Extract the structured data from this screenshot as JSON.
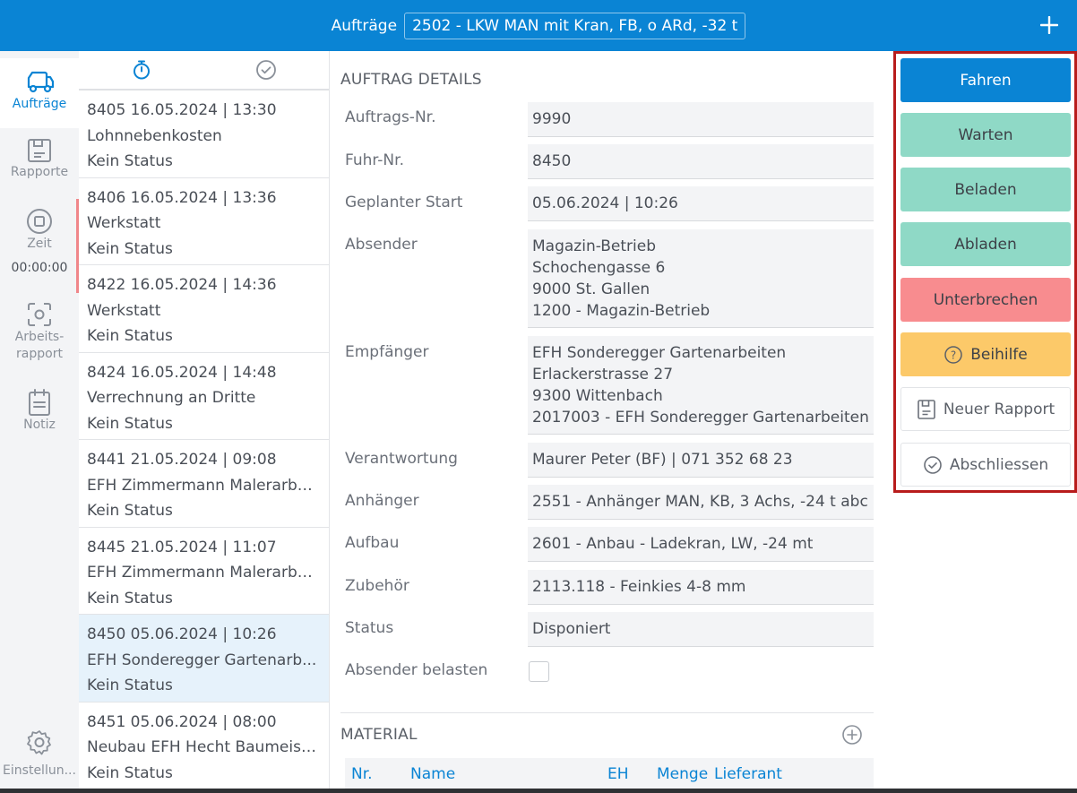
{
  "topbar": {
    "title": "Aufträge",
    "vehicle": "2502 - LKW MAN mit Kran, FB, o ARd, -32 t",
    "add_icon": "plus-icon"
  },
  "nav": {
    "items": [
      {
        "label": "Aufträge",
        "icon": "truck-icon",
        "active": true
      },
      {
        "label": "Rapporte",
        "icon": "save-icon"
      },
      {
        "label": "Zeit",
        "icon": "stop-icon",
        "time": "00:00:00"
      },
      {
        "label": "Arbeits-\nrapport",
        "label1": "Arbeits-",
        "label2": "rapport",
        "icon": "focus-icon"
      },
      {
        "label": "Notiz",
        "icon": "clipboard-icon"
      },
      {
        "label": "Einstellun...",
        "icon": "gear-icon"
      }
    ]
  },
  "list": {
    "tabs": [
      "stopwatch-icon",
      "check-circle-icon"
    ],
    "orders": [
      {
        "head": "8405  16.05.2024 | 13:30",
        "name": "Lohnnebenkosten",
        "status": "Kein Status"
      },
      {
        "head": "8406  16.05.2024 | 13:36",
        "name": "Werkstatt",
        "status": "Kein Status"
      },
      {
        "head": "8422  16.05.2024 | 14:36",
        "name": "Werkstatt",
        "status": "Kein Status"
      },
      {
        "head": "8424  16.05.2024 | 14:48",
        "name": "Verrechnung an Dritte",
        "status": "Kein Status"
      },
      {
        "head": "8441  21.05.2024 | 09:08",
        "name": "EFH Zimmermann Malerarbe...",
        "status": "Kein Status"
      },
      {
        "head": "8445  21.05.2024 | 11:07",
        "name": "EFH Zimmermann Malerarbe...",
        "status": "Kein Status"
      },
      {
        "head": "8450  05.06.2024 | 10:26",
        "name": "EFH Sonderegger Gartenarb...",
        "status": "Kein Status",
        "selected": true
      },
      {
        "head": "8451  05.06.2024 | 08:00",
        "name": "Neubau EFH Hecht Baumeist...",
        "status": "Kein Status"
      }
    ]
  },
  "details": {
    "section_title": "AUFTRAG DETAILS",
    "fields": [
      {
        "label": "Auftrags-Nr.",
        "value": "9990"
      },
      {
        "label": "Fuhr-Nr.",
        "value": "8450"
      },
      {
        "label": "Geplanter Start",
        "value": "05.06.2024 | 10:26"
      },
      {
        "label": "Absender",
        "lines": [
          "Magazin-Betrieb",
          "Schochengasse 6",
          "9000 St. Gallen",
          "1200 - Magazin-Betrieb"
        ]
      },
      {
        "label": "Empfänger",
        "lines": [
          "EFH Sonderegger Gartenarbeiten",
          "Erlackerstrasse 27",
          "9300 Wittenbach",
          "2017003 - EFH Sonderegger Gartenarbeiten"
        ]
      },
      {
        "label": "Verantwortung",
        "value": "Maurer Peter (BF) | 071 352 68 23"
      },
      {
        "label": "Anhänger",
        "value": "2551 - Anhänger MAN, KB, 3 Achs, -24 t abc"
      },
      {
        "label": "Aufbau",
        "value": "2601 - Anbau - Ladekran, LW, -24 mt"
      },
      {
        "label": "Zubehör",
        "value": "2113.118 - Feinkies 4-8 mm"
      },
      {
        "label": "Status",
        "value": "Disponiert"
      },
      {
        "label": "Absender belasten",
        "checked": false
      }
    ],
    "material": {
      "title": "MATERIAL",
      "columns": [
        "Nr.",
        "Name",
        "EH",
        "Menge",
        "Lieferant"
      ]
    }
  },
  "actions": [
    {
      "label": "Fahren",
      "style": "blue"
    },
    {
      "label": "Warten",
      "style": "green"
    },
    {
      "label": "Beladen",
      "style": "green"
    },
    {
      "label": "Abladen",
      "style": "green"
    },
    {
      "label": "Unterbrechen",
      "style": "red"
    },
    {
      "label": "Beihilfe",
      "style": "yellow",
      "icon": "help-circle-icon"
    },
    {
      "label": "Neuer Rapport",
      "style": "plain",
      "icon": "save-icon"
    },
    {
      "label": "Abschliessen",
      "style": "plain",
      "icon": "check-circle-icon"
    }
  ],
  "colors": {
    "primary": "#0a84d4",
    "green": "#8fd9c6",
    "red": "#f88c8f",
    "yellow": "#fcc969",
    "highlight": "#b81c1c"
  }
}
